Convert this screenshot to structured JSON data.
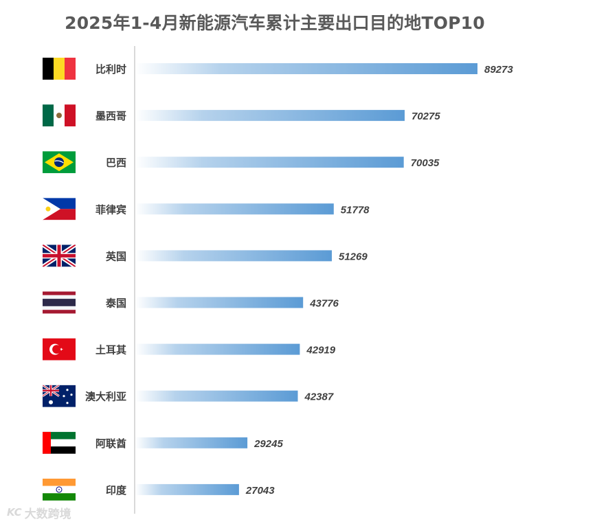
{
  "chart_data": {
    "type": "bar",
    "orientation": "horizontal",
    "title": "2025年1-4月新能源汽车累计主要出口目的地TOP10",
    "categories": [
      "比利时",
      "墨西哥",
      "巴西",
      "菲律宾",
      "英国",
      "泰国",
      "土耳其",
      "澳大利亚",
      "阿联酋",
      "印度"
    ],
    "values": [
      89273,
      70275,
      70035,
      51778,
      51269,
      43776,
      42919,
      42387,
      29245,
      27043
    ],
    "flags": [
      "belgium-flag",
      "mexico-flag",
      "brazil-flag",
      "philippines-flag",
      "uk-flag",
      "thailand-flag",
      "turkey-flag",
      "australia-flag",
      "uae-flag",
      "india-flag"
    ],
    "xlabel": "",
    "ylabel": "",
    "grid": false,
    "bar_color": "#5b9bd5",
    "value_label_color": "#404040",
    "category_label_color": "#404040"
  },
  "watermark": {
    "text": "大数跨境",
    "logo": "KC"
  }
}
